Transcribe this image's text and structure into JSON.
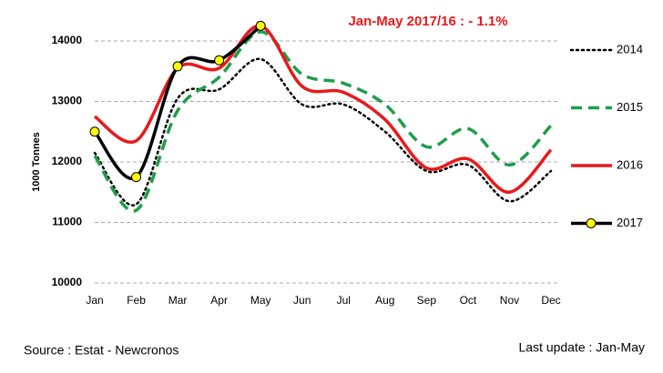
{
  "chart_data": {
    "type": "line",
    "annotation": "Jan-May 2017/16 :  - 1.1%",
    "y_label": "1000 Tonnes",
    "source": "Source : Estat - Newcronos",
    "note": "Last update : Jan-May",
    "categories": [
      "Jan",
      "Feb",
      "Mar",
      "Apr",
      "May",
      "Jun",
      "Jul",
      "Aug",
      "Sep",
      "Oct",
      "Nov",
      "Dec"
    ],
    "series": [
      {
        "name": "2014",
        "color": "#000000",
        "dash": "dotted",
        "values": [
          12150,
          11300,
          13050,
          13200,
          13700,
          12950,
          12950,
          12500,
          11850,
          11950,
          11350,
          11850
        ]
      },
      {
        "name": "2015",
        "color": "#1e9e4a",
        "dash": "dashed",
        "values": [
          12100,
          11200,
          12850,
          13400,
          14150,
          13450,
          13300,
          12950,
          12250,
          12550,
          11950,
          12600
        ]
      },
      {
        "name": "2016",
        "color": "#e8191c",
        "dash": "solid",
        "values": [
          12750,
          12350,
          13550,
          13550,
          14250,
          13250,
          13150,
          12700,
          11900,
          12050,
          11500,
          12200
        ]
      },
      {
        "name": "2017",
        "color": "#000000",
        "dash": "solid",
        "marker": "circle",
        "marker_color": "#ffff00",
        "values": [
          12500,
          11750,
          13580,
          13680,
          14250,
          null,
          null,
          null,
          null,
          null,
          null,
          null
        ]
      }
    ],
    "ylim": [
      10000,
      14000
    ],
    "yticks": [
      10000,
      11000,
      12000,
      13000,
      14000
    ],
    "grid": true
  }
}
